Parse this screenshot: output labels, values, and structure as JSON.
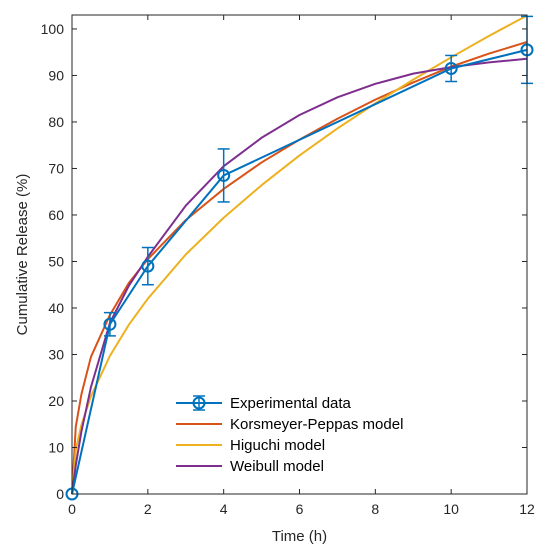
{
  "chart_data": {
    "type": "line",
    "xlabel": "Time (h)",
    "ylabel": "Cumulative Release (%)",
    "xlim": [
      0,
      12
    ],
    "ylim": [
      0,
      103
    ],
    "xticks": [
      0,
      2,
      4,
      6,
      8,
      10,
      12
    ],
    "yticks": [
      0,
      10,
      20,
      30,
      40,
      50,
      60,
      70,
      80,
      90,
      100
    ],
    "grid": false,
    "legend_position": "lower-center",
    "experimental": {
      "name": "Experimental data",
      "color": "#0072BD",
      "x": [
        0,
        1,
        2,
        4,
        10,
        12
      ],
      "y": [
        0,
        36.5,
        49,
        68.5,
        91.5,
        95.5
      ],
      "error": [
        0,
        2.5,
        4,
        5.7,
        2.8,
        7.2
      ]
    },
    "models": [
      {
        "name": "Korsmeyer-Peppas model",
        "color": "#D95319",
        "x": [
          0,
          0.1,
          0.25,
          0.5,
          1,
          1.5,
          2,
          3,
          4,
          5,
          6,
          7,
          8,
          9,
          10,
          11,
          12
        ],
        "y": [
          0,
          14.5,
          21.5,
          29.5,
          38.5,
          45.4,
          50.5,
          58.9,
          65.6,
          71.3,
          76.2,
          80.7,
          84.8,
          88.5,
          91.9,
          94.7,
          97.2
        ]
      },
      {
        "name": "Higuchi model",
        "color": "#EDB120",
        "x": [
          0,
          0.1,
          0.25,
          0.5,
          1,
          1.5,
          2,
          3,
          4,
          5,
          6,
          7,
          8,
          9,
          10,
          11,
          12
        ],
        "y": [
          0,
          9.5,
          14.9,
          21,
          29.7,
          36.4,
          42,
          51.5,
          59.4,
          66.4,
          72.8,
          78.6,
          84,
          89.1,
          93.9,
          98.5,
          102.9
        ]
      },
      {
        "name": "Weibull model",
        "color": "#7E2F8E",
        "x": [
          0,
          0.1,
          0.25,
          0.5,
          1,
          1.5,
          2,
          3,
          4,
          5,
          6,
          7,
          8,
          9,
          10,
          11,
          12
        ],
        "y": [
          0,
          6.2,
          13.5,
          23,
          36.8,
          44.8,
          51,
          62,
          70.5,
          76.6,
          81.5,
          85.3,
          88.2,
          90.4,
          91.8,
          92.8,
          93.6
        ]
      }
    ]
  }
}
